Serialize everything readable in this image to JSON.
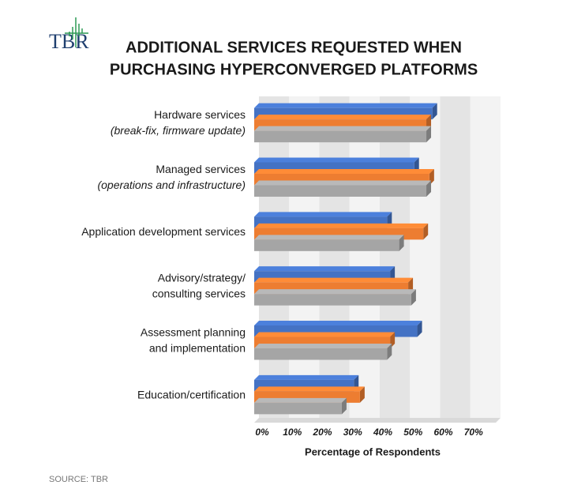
{
  "logo": "TBR",
  "chart_data": {
    "type": "hbar3d",
    "title": [
      "ADDITIONAL SERVICES REQUESTED WHEN",
      "PURCHASING HYPERCONVERGED PLATFORMS"
    ],
    "categories": [
      [
        "Hardware services",
        "(break-fix, firmware update)"
      ],
      [
        "Managed services",
        "(operations and infrastructure)"
      ],
      [
        "Application development services"
      ],
      [
        "Advisory/strategy/",
        "consulting services"
      ],
      [
        "Assessment planning",
        "and implementation"
      ],
      [
        "Education/certification"
      ]
    ],
    "series": [
      {
        "color": "#4472c4",
        "values": [
          59,
          53,
          44,
          45,
          54,
          33
        ]
      },
      {
        "color": "#ed7d31",
        "values": [
          57,
          58,
          56,
          51,
          45,
          35
        ]
      },
      {
        "color": "#a5a5a5",
        "values": [
          57,
          57,
          48,
          52,
          44,
          29
        ]
      }
    ],
    "xlim": [
      0,
      80
    ],
    "xticks": [
      {
        "value": 0,
        "label": "0%"
      },
      {
        "value": 10,
        "label": "10%"
      },
      {
        "value": 20,
        "label": "20%"
      },
      {
        "value": 30,
        "label": "30%"
      },
      {
        "value": 40,
        "label": "40%"
      },
      {
        "value": 50,
        "label": "50%"
      },
      {
        "value": 60,
        "label": "60%"
      },
      {
        "value": 70,
        "label": "70%"
      }
    ],
    "xlabel": "Percentage of Respondents",
    "grid": true
  },
  "source": "SOURCE: TBR"
}
